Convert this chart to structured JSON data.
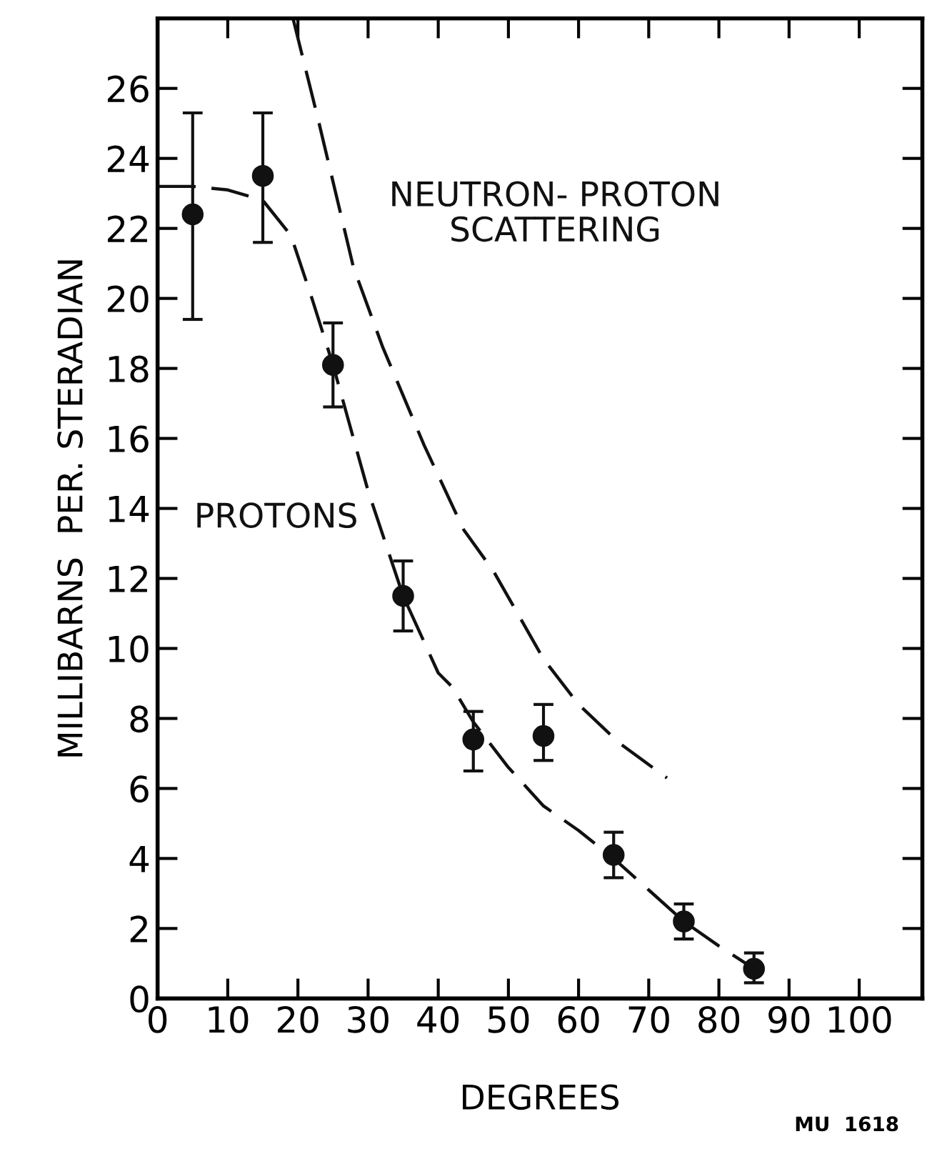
{
  "chart_data": {
    "type": "line",
    "xlabel": "DEGREES",
    "ylabel": "MILLIBARNS  PER. STERADIAN",
    "xlim": [
      0,
      109
    ],
    "ylim": [
      0,
      28
    ],
    "xticks": [
      0,
      10,
      20,
      30,
      40,
      50,
      60,
      70,
      80,
      90,
      100
    ],
    "yticks": [
      0,
      2,
      4,
      6,
      8,
      10,
      12,
      14,
      16,
      18,
      20,
      22,
      24,
      26
    ],
    "grid": false,
    "legend": false,
    "series": [
      {
        "type": "scatter",
        "color": "#111111",
        "marker": "circle",
        "x": [
          5,
          15,
          25,
          35,
          45,
          55,
          65,
          75,
          85
        ],
        "values": [
          22.4,
          23.5,
          18.1,
          11.5,
          7.4,
          7.5,
          4.1,
          2.2,
          0.85
        ],
        "errors": [
          [
            19.4,
            25.3
          ],
          [
            21.6,
            25.3
          ],
          [
            16.9,
            19.3
          ],
          [
            10.5,
            12.5
          ],
          [
            6.5,
            8.2
          ],
          [
            6.8,
            8.4
          ],
          [
            3.45,
            4.75
          ],
          [
            1.7,
            2.7
          ],
          [
            0.45,
            1.3
          ]
        ]
      },
      {
        "name": "PROTONS",
        "color": "#111111",
        "line_style": "dashed",
        "x": [
          0,
          5,
          10,
          15,
          19,
          22,
          25,
          30,
          35,
          40,
          42,
          45,
          50,
          55,
          60,
          65,
          70,
          75,
          80,
          85
        ],
        "values": [
          23.2,
          23.2,
          23.1,
          22.8,
          21.8,
          20,
          18.1,
          14.5,
          11.5,
          9.3,
          8.9,
          7.9,
          6.6,
          5.5,
          4.8,
          4.0,
          3.1,
          2.2,
          1.5,
          0.85
        ]
      },
      {
        "name": "NEUTRON- PROTON\nSCATTERING",
        "color": "#111111",
        "line_style": "dashed",
        "x": [
          19.3,
          22.9,
          27.9,
          32.1,
          38,
          43.6,
          47.9,
          55,
          60,
          65.8,
          72.6
        ],
        "values": [
          28,
          25.1,
          20.9,
          18.6,
          15.8,
          13.4,
          12.2,
          9.7,
          8.4,
          7.3,
          6.3
        ]
      }
    ],
    "annotations": [
      "MU  1618"
    ]
  }
}
